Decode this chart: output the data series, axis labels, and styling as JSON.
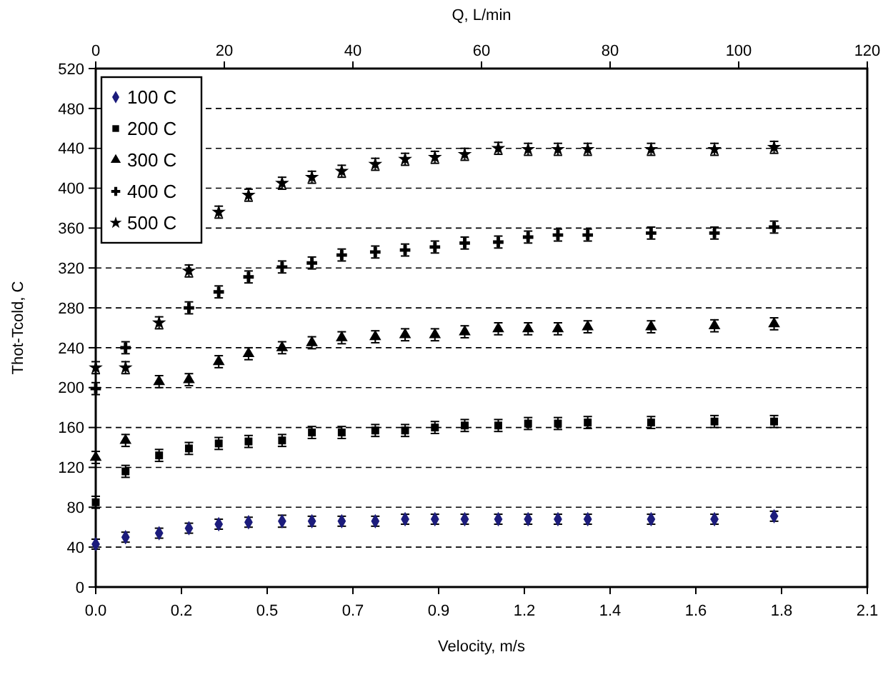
{
  "chart_data": {
    "type": "scatter",
    "xlabel": "Velocity, m/s",
    "ylabel": "Thot-Tcold, C",
    "x2label": "Q, L/min",
    "x": [
      0,
      0.08,
      0.17,
      0.25,
      0.33,
      0.41,
      0.5,
      0.58,
      0.66,
      0.75,
      0.83,
      0.91,
      0.99,
      1.08,
      1.16,
      1.24,
      1.32,
      1.49,
      1.66,
      1.82
    ],
    "xlim": [
      0,
      2.07
    ],
    "xticks": [
      {
        "value": 0,
        "label": "0.0"
      },
      {
        "value": 0.23,
        "label": "0.2"
      },
      {
        "value": 0.46,
        "label": "0.5"
      },
      {
        "value": 0.69,
        "label": "0.7"
      },
      {
        "value": 0.92,
        "label": "0.9"
      },
      {
        "value": 1.15,
        "label": "1.2"
      },
      {
        "value": 1.38,
        "label": "1.4"
      },
      {
        "value": 1.61,
        "label": "1.6"
      },
      {
        "value": 1.84,
        "label": "1.8"
      },
      {
        "value": 2.07,
        "label": "2.1"
      }
    ],
    "x2lim": [
      0,
      120
    ],
    "x2ticks": [
      0,
      20,
      40,
      60,
      80,
      100,
      120
    ],
    "ylim": [
      0,
      520
    ],
    "yticks": [
      0,
      40,
      80,
      120,
      160,
      200,
      240,
      280,
      320,
      360,
      400,
      440,
      480,
      520
    ],
    "grid": "y",
    "legend": "top left",
    "series": [
      {
        "name": "100 C",
        "color": "#1c1c7c",
        "marker": "diamond",
        "values": [
          43,
          50,
          54,
          59,
          63,
          65,
          66,
          66,
          66,
          66,
          68,
          68,
          68,
          68,
          68,
          68,
          68,
          68,
          68,
          71
        ],
        "errors": [
          5,
          5,
          5,
          5,
          5,
          5,
          6,
          5,
          5,
          5,
          5,
          5,
          5,
          5,
          5,
          5,
          5,
          5,
          5,
          5
        ]
      },
      {
        "name": "200 C",
        "color": "#000000",
        "marker": "square",
        "values": [
          85,
          116,
          132,
          139,
          144,
          146,
          147,
          155,
          155,
          157,
          157,
          160,
          162,
          162,
          164,
          164,
          165,
          165,
          166,
          166
        ],
        "errors": [
          6,
          6,
          6,
          6,
          6,
          6,
          6,
          6,
          6,
          6,
          6,
          6,
          6,
          6,
          6,
          6,
          6,
          6,
          6,
          6
        ]
      },
      {
        "name": "300 C",
        "color": "#000000",
        "marker": "triangle",
        "values": [
          130,
          147,
          206,
          208,
          226,
          234,
          240,
          245,
          250,
          251,
          253,
          253,
          256,
          259,
          259,
          259,
          261,
          261,
          262,
          264
        ],
        "errors": [
          6,
          6,
          6,
          6,
          6,
          6,
          6,
          6,
          6,
          6,
          6,
          6,
          6,
          6,
          6,
          6,
          6,
          6,
          6,
          6
        ]
      },
      {
        "name": "400 C",
        "color": "#000000",
        "marker": "cross",
        "values": [
          199,
          240,
          null,
          280,
          296,
          311,
          321,
          325,
          333,
          336,
          338,
          341,
          345,
          346,
          351,
          353,
          353,
          355,
          355,
          361
        ],
        "errors": [
          6,
          6,
          null,
          6,
          6,
          6,
          6,
          6,
          6,
          6,
          6,
          6,
          6,
          6,
          6,
          6,
          6,
          6,
          6,
          6
        ]
      },
      {
        "name": "500 C",
        "color": "#000000",
        "marker": "star",
        "values": [
          220,
          220,
          265,
          317,
          376,
          393,
          405,
          411,
          417,
          424,
          429,
          431,
          434,
          440,
          439,
          439,
          439,
          439,
          439,
          441
        ],
        "errors": [
          6,
          6,
          6,
          6,
          6,
          6,
          6,
          6,
          6,
          6,
          6,
          6,
          6,
          6,
          6,
          6,
          6,
          6,
          6,
          6
        ]
      }
    ]
  }
}
